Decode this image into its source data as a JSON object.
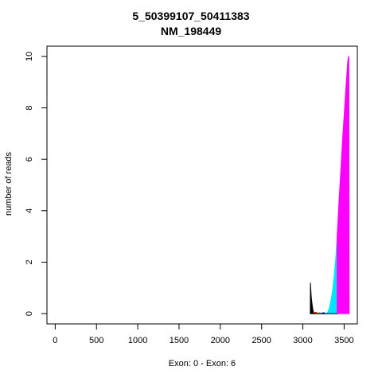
{
  "chart_data": {
    "type": "area",
    "title": "5_50399107_50411383",
    "subtitle": "NM_198449",
    "xlabel": "Exon: 0 - Exon: 6",
    "ylabel": "number of reads",
    "xlim": [
      -100,
      3660
    ],
    "ylim": [
      -0.4,
      10.4
    ],
    "x_ticks": [
      0,
      500,
      1000,
      1500,
      2000,
      2500,
      3000,
      3500
    ],
    "y_ticks": [
      0,
      2,
      4,
      6,
      8,
      10
    ],
    "grid": false,
    "legend": "none",
    "series": [
      {
        "color": "#000000",
        "points": [
          [
            3090,
            0
          ],
          [
            3092,
            1.2
          ],
          [
            3095,
            1.0
          ],
          [
            3100,
            0.75
          ],
          [
            3105,
            0.55
          ],
          [
            3110,
            0.4
          ],
          [
            3115,
            0.28
          ],
          [
            3120,
            0.18
          ],
          [
            3125,
            0.1
          ],
          [
            3130,
            0.05
          ],
          [
            3135,
            0
          ]
        ]
      },
      {
        "color": "#ff0000",
        "points": [
          [
            3135,
            0
          ],
          [
            3140,
            0.03
          ],
          [
            3150,
            0.05
          ],
          [
            3160,
            0.05
          ],
          [
            3170,
            0.03
          ],
          [
            3178,
            0
          ]
        ]
      },
      {
        "color": "#00aa00",
        "points": [
          [
            3178,
            0
          ],
          [
            3185,
            0.02
          ],
          [
            3200,
            0.03
          ],
          [
            3215,
            0.02
          ],
          [
            3222,
            0
          ]
        ]
      },
      {
        "color": "#0000ff",
        "points": [
          [
            3222,
            0
          ],
          [
            3235,
            0.02
          ],
          [
            3250,
            0.04
          ],
          [
            3265,
            0.02
          ],
          [
            3275,
            0
          ]
        ]
      },
      {
        "color": "#00e5ff",
        "points": [
          [
            3275,
            0
          ],
          [
            3300,
            0.05
          ],
          [
            3320,
            0.2
          ],
          [
            3340,
            0.5
          ],
          [
            3360,
            0.9
          ],
          [
            3380,
            1.5
          ],
          [
            3400,
            2.2
          ],
          [
            3415,
            3.0
          ],
          [
            3420,
            0
          ]
        ]
      },
      {
        "color": "#ff00ff",
        "points": [
          [
            3415,
            0
          ],
          [
            3415,
            3.0
          ],
          [
            3440,
            4.5
          ],
          [
            3460,
            5.6
          ],
          [
            3480,
            6.7
          ],
          [
            3500,
            7.7
          ],
          [
            3520,
            8.7
          ],
          [
            3535,
            9.4
          ],
          [
            3545,
            9.85
          ],
          [
            3552,
            10.0
          ],
          [
            3558,
            9.95
          ],
          [
            3562,
            0
          ]
        ]
      }
    ]
  }
}
